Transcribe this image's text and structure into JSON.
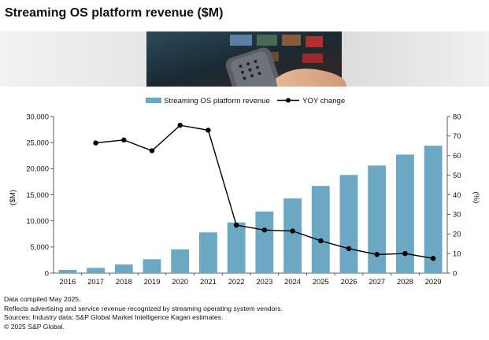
{
  "header": {
    "title": "Streaming OS platform revenue ($M)"
  },
  "colors": {
    "bar": "#6aa8c4",
    "line": "#000000",
    "axis": "#333333"
  },
  "chart_data": {
    "type": "bar",
    "categories": [
      "2016",
      "2017",
      "2018",
      "2019",
      "2020",
      "2021",
      "2022",
      "2023",
      "2024",
      "2025",
      "2026",
      "2027",
      "2028",
      "2029"
    ],
    "series": [
      {
        "name": "Streaming OS platform revenue",
        "type": "bar",
        "axis": "left",
        "values": [
          600,
          1000,
          1650,
          2650,
          4550,
          7800,
          9700,
          11800,
          14300,
          16700,
          18800,
          20600,
          22700,
          24400
        ]
      },
      {
        "name": "YOY change",
        "type": "line",
        "axis": "right",
        "values": [
          null,
          66.5,
          68,
          62.5,
          75.5,
          73,
          24.5,
          22,
          21.5,
          16.5,
          12.5,
          9.5,
          10,
          7.5
        ]
      }
    ],
    "yleft": {
      "label": "($M)",
      "min": 0,
      "max": 30000,
      "ticks": [
        "0",
        "5,000",
        "10,000",
        "15,000",
        "20,000",
        "25,000",
        "30,000"
      ],
      "tick_values": [
        0,
        5000,
        10000,
        15000,
        20000,
        25000,
        30000
      ]
    },
    "yright": {
      "label": "(%)",
      "min": 0,
      "max": 80,
      "ticks": [
        "0",
        "10",
        "20",
        "30",
        "40",
        "50",
        "60",
        "70",
        "80"
      ],
      "tick_values": [
        0,
        10,
        20,
        30,
        40,
        50,
        60,
        70,
        80
      ]
    },
    "legend_position": "top-center",
    "grid": false
  },
  "notes": [
    "Data compiled May 2025.",
    "Reflects advertising and service revenue recognized by streaming operating system vendors.",
    "Sources: Industry data; S&P Global Market Intelligence Kagan estimates.",
    "© 2025 S&P Global."
  ]
}
